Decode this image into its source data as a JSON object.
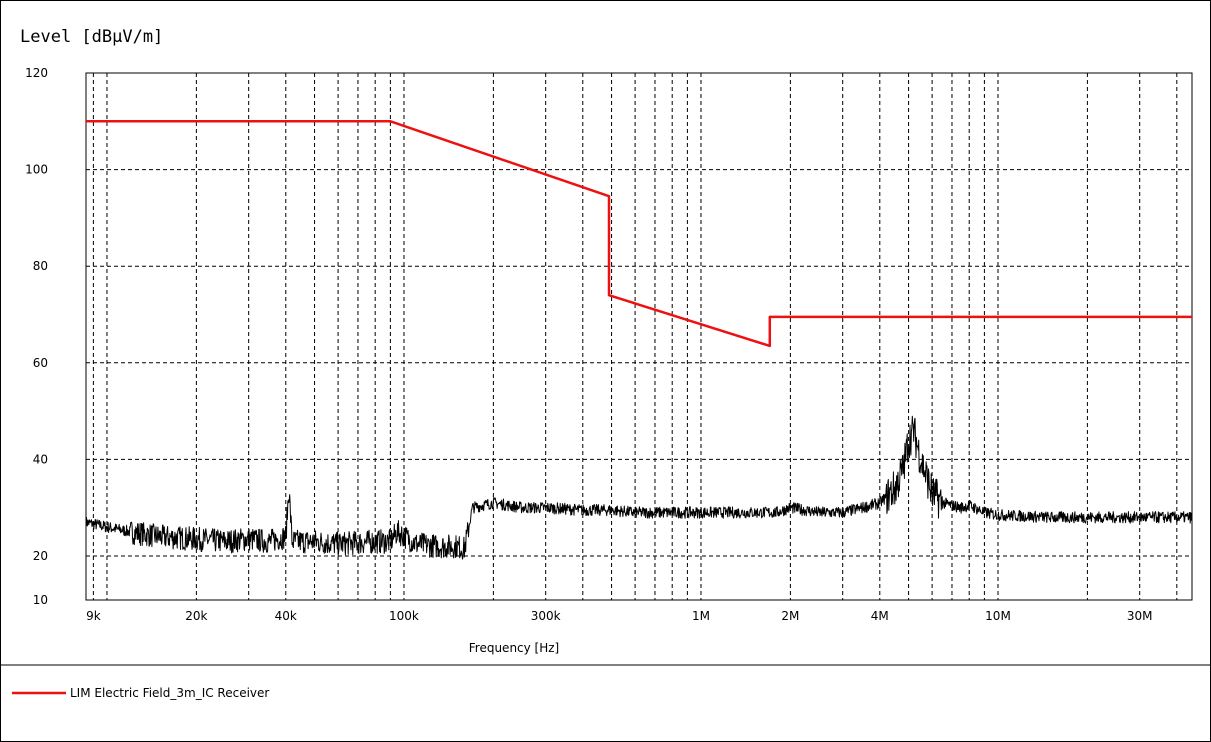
{
  "chart_data": {
    "type": "line",
    "ylabel": "Level [dBμV/m]",
    "xlabel": "Frequency [Hz]",
    "xscale": "log",
    "xlim": [
      8500,
      45000000
    ],
    "ylim": [
      10,
      120
    ],
    "grid": true,
    "y_ticks": [
      {
        "value": 10,
        "label": "10"
      },
      {
        "value": 20,
        "label": "20"
      },
      {
        "value": 40,
        "label": "40"
      },
      {
        "value": 60,
        "label": "60"
      },
      {
        "value": 80,
        "label": "80"
      },
      {
        "value": 100,
        "label": "100"
      },
      {
        "value": 120,
        "label": "120"
      }
    ],
    "x_ticks": [
      {
        "value": 9000,
        "label": "9k"
      },
      {
        "value": 20000,
        "label": "20k"
      },
      {
        "value": 40000,
        "label": "40k"
      },
      {
        "value": 100000,
        "label": "100k"
      },
      {
        "value": 300000,
        "label": "300k"
      },
      {
        "value": 1000000,
        "label": "1M"
      },
      {
        "value": 2000000,
        "label": "2M"
      },
      {
        "value": 4000000,
        "label": "4M"
      },
      {
        "value": 10000000,
        "label": "10M"
      },
      {
        "value": 30000000,
        "label": "30M"
      }
    ],
    "legend_placement": "bottom-left",
    "series": [
      {
        "name": "LIM  Electric Field_3m_IC  Receiver",
        "color": "#ee1111",
        "x": [
          8500,
          90000,
          490000,
          490000,
          1705000,
          1705000,
          45000000
        ],
        "y": [
          110,
          110,
          94.5,
          74,
          63.5,
          69.5,
          69.5
        ]
      },
      {
        "color": "#000000",
        "x": [
          8500,
          10000,
          12000,
          15000,
          20000,
          25000,
          30000,
          35000,
          40000,
          41000,
          42000,
          50000,
          60000,
          80000,
          90000,
          95000,
          110000,
          130000,
          150000,
          160000,
          170000,
          200000,
          250000,
          300000,
          400000,
          500000,
          600000,
          800000,
          1000000,
          1200000,
          1500000,
          1800000,
          2000000,
          2500000,
          3000000,
          3500000,
          4000000,
          4500000,
          4800000,
          5000000,
          5200000,
          5500000,
          6000000,
          6500000,
          7000000,
          7500000,
          8000000,
          9000000,
          10000000,
          15000000,
          20000000,
          30000000,
          45000000
        ],
        "y": [
          27,
          26,
          25,
          24,
          23.5,
          23,
          23.5,
          23,
          24,
          34,
          23,
          23,
          22.5,
          23,
          23,
          25,
          22.5,
          22,
          22,
          21.5,
          30,
          31,
          30,
          30,
          29.5,
          29.5,
          29,
          29,
          29,
          29,
          29,
          29,
          30,
          29,
          29,
          30,
          31,
          34,
          38,
          44,
          46,
          40,
          33,
          31,
          30.5,
          30,
          30.5,
          29,
          28.5,
          28,
          28,
          28,
          28
        ]
      }
    ]
  }
}
